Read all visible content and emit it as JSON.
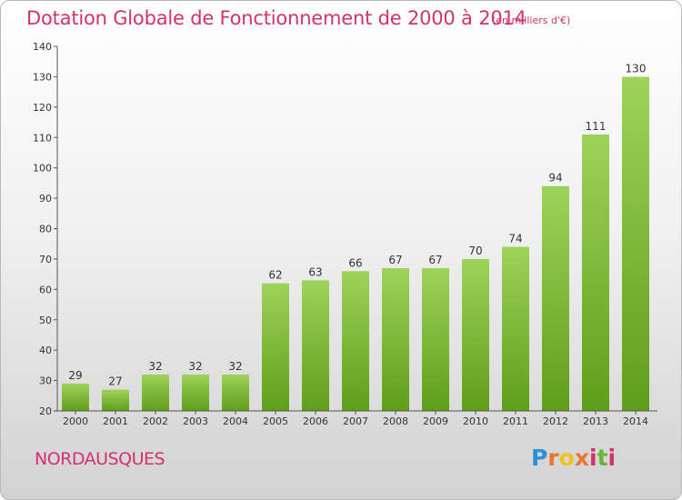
{
  "title": "Dotation Globale de Fonctionnement de 2000 à 2014",
  "subtitle": "(en milliers d'€)",
  "commune": "NORDAUSQUES",
  "logo": {
    "p1": "P",
    "p2": "r",
    "p3": "o",
    "p4": "x",
    "p5": "i",
    "p6": "t",
    "p7": "i"
  },
  "colors": {
    "accent": "#d2336e",
    "bar_top": "#9dd35a",
    "bar_bottom": "#5f9e1a"
  },
  "chart_data": {
    "type": "bar",
    "title": "Dotation Globale de Fonctionnement de 2000 à 2014",
    "subtitle": "(en milliers d'€)",
    "categories": [
      "2000",
      "2001",
      "2002",
      "2003",
      "2004",
      "2005",
      "2006",
      "2007",
      "2008",
      "2009",
      "2010",
      "2011",
      "2012",
      "2013",
      "2014"
    ],
    "values": [
      29,
      27,
      32,
      32,
      32,
      62,
      63,
      66,
      67,
      67,
      70,
      74,
      94,
      111,
      130
    ],
    "ylim": [
      20,
      140
    ],
    "yticks": [
      20,
      30,
      40,
      50,
      60,
      70,
      80,
      90,
      100,
      110,
      120,
      130,
      140
    ],
    "grid": false,
    "xlabel": "",
    "ylabel": ""
  }
}
